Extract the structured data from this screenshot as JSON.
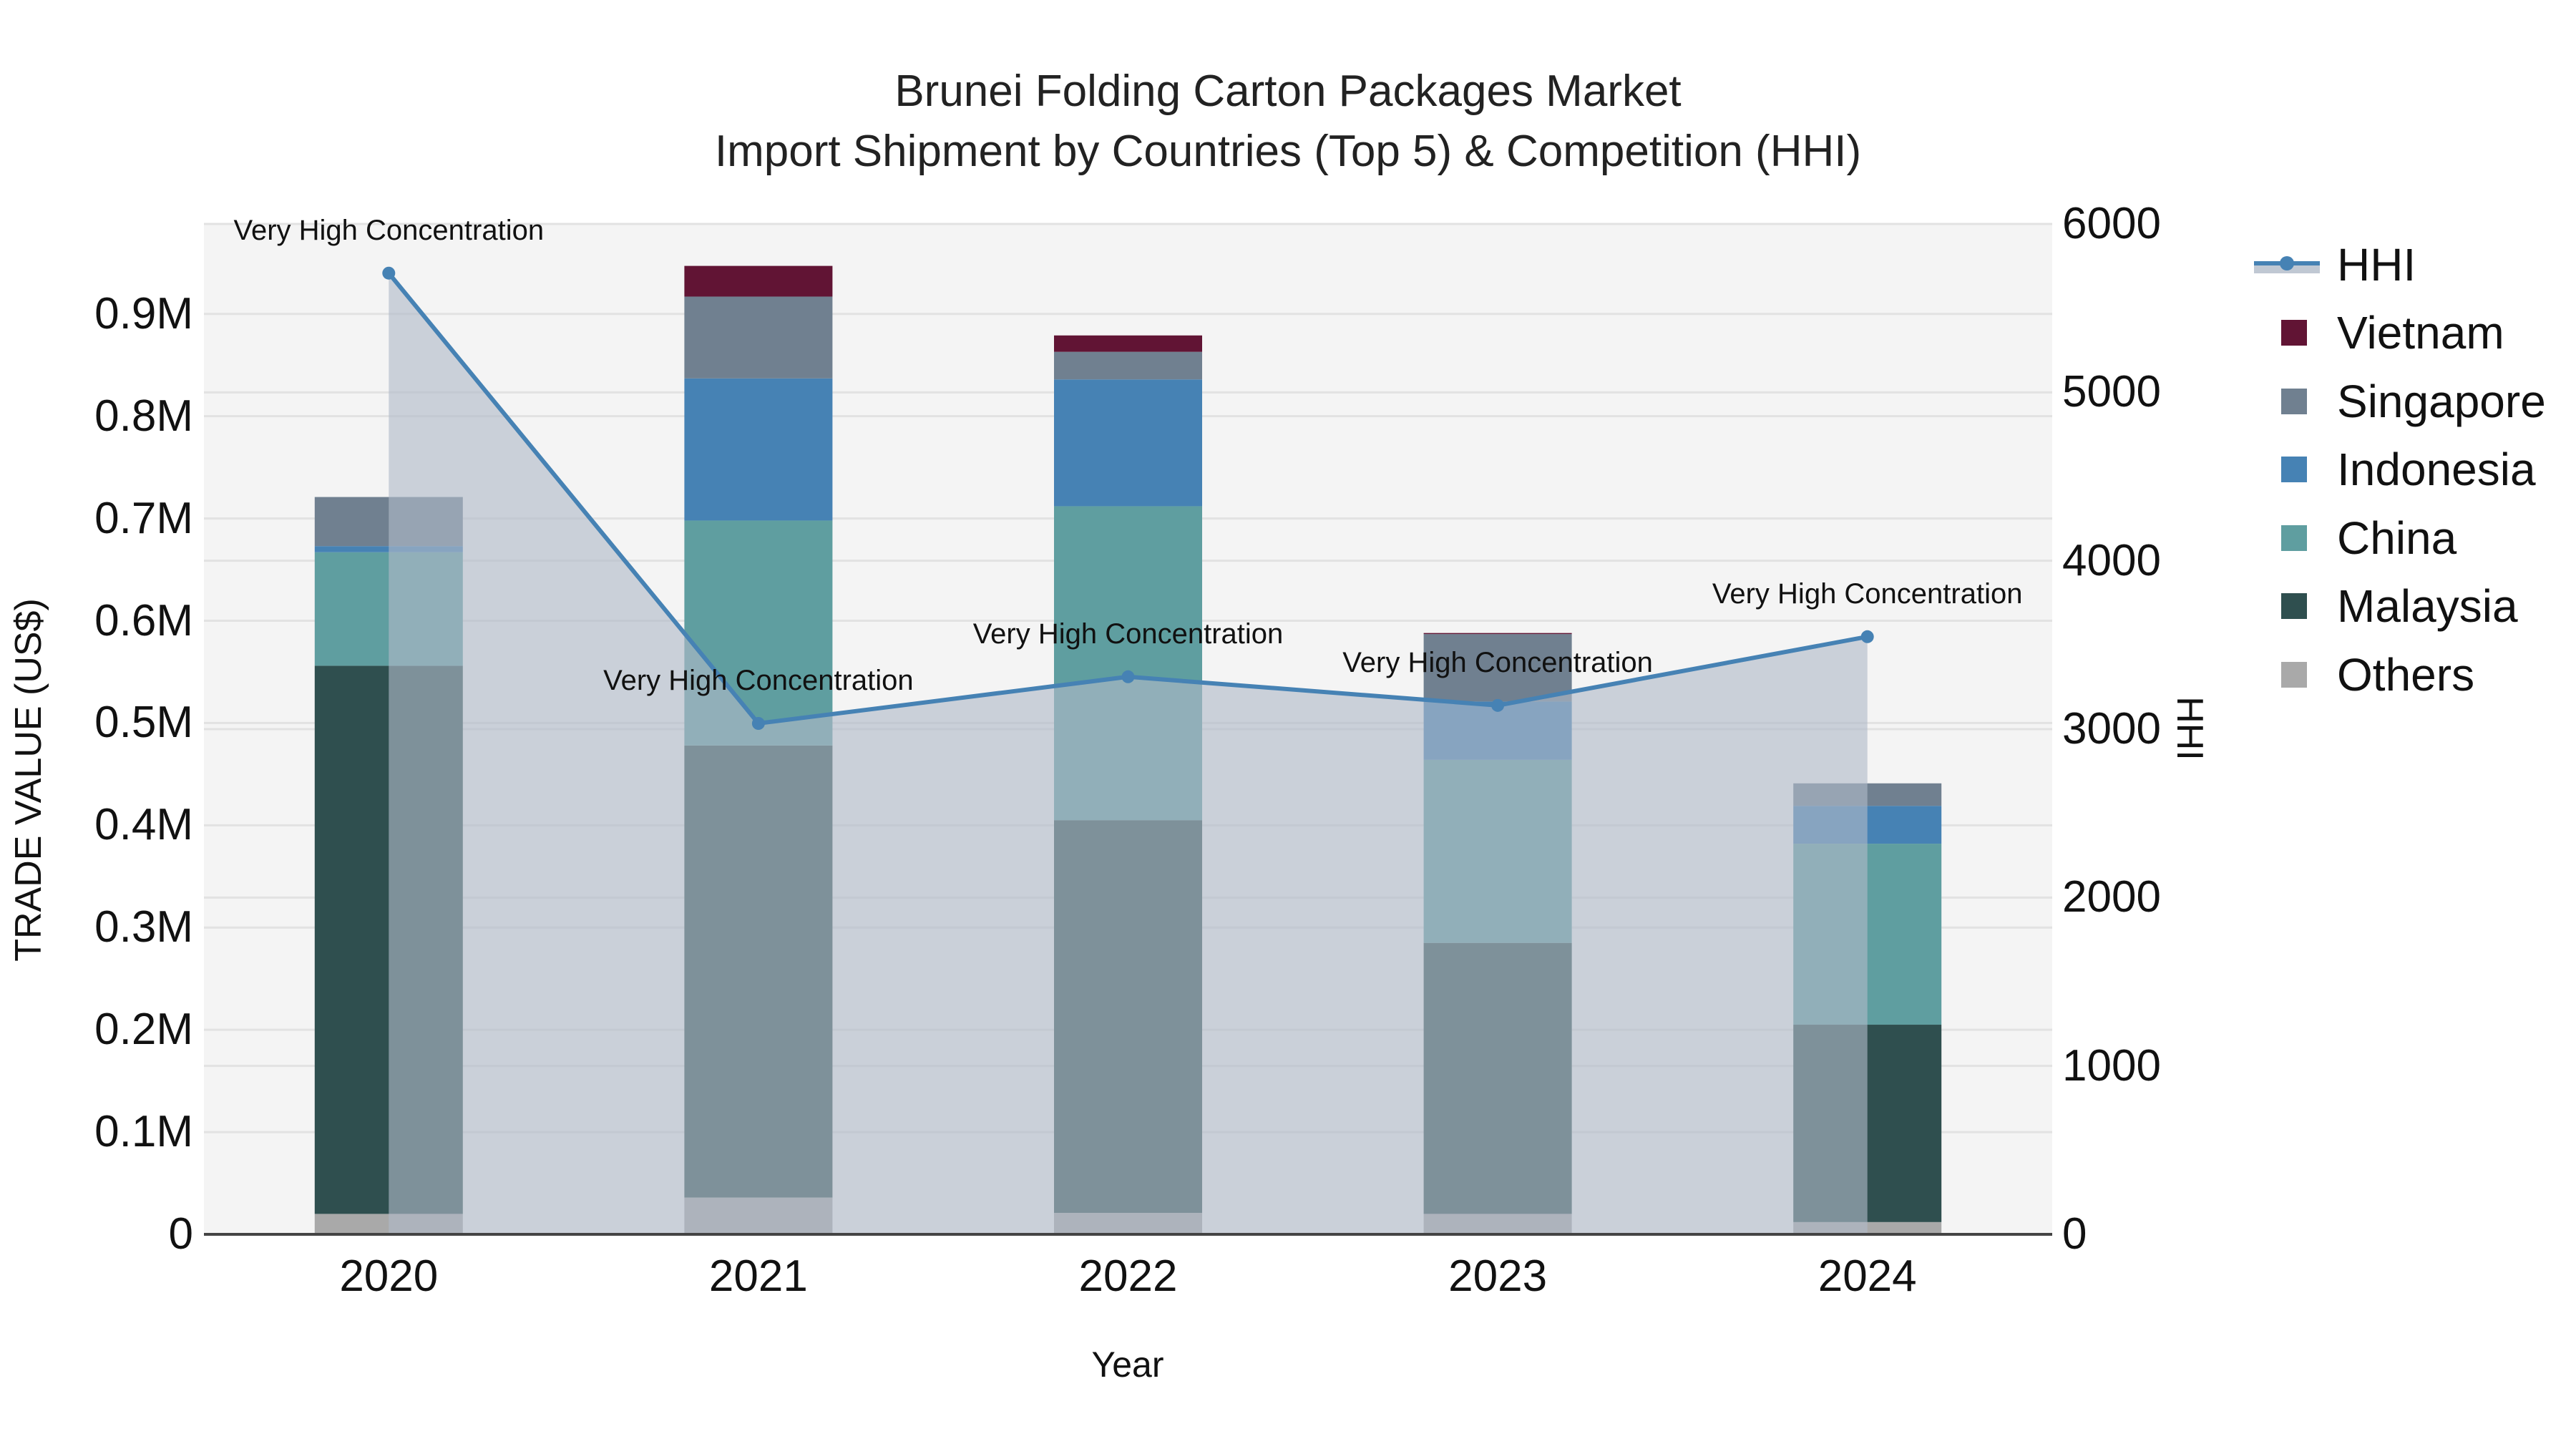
{
  "title": {
    "line1": "Brunei Folding Carton Packages Market",
    "line2": "Import Shipment by Countries (Top 5) & Competition (HHI)"
  },
  "axes": {
    "x_title": "Year",
    "y_title": "TRADE VALUE (US$)",
    "y2_title": "HHI",
    "y_ticks": [
      "0",
      "0.1M",
      "0.2M",
      "0.3M",
      "0.4M",
      "0.5M",
      "0.6M",
      "0.7M",
      "0.8M",
      "0.9M"
    ],
    "y2_ticks": [
      "0",
      "1000",
      "2000",
      "3000",
      "4000",
      "5000",
      "6000"
    ],
    "x_ticks": [
      "2020",
      "2021",
      "2022",
      "2023",
      "2024"
    ]
  },
  "legend": [
    {
      "label": "HHI",
      "type": "line",
      "color": "#4682B4"
    },
    {
      "label": "Vietnam",
      "type": "bar",
      "color": "#611434"
    },
    {
      "label": "Singapore",
      "type": "bar",
      "color": "#708090"
    },
    {
      "label": "Indonesia",
      "type": "bar",
      "color": "#4682B4"
    },
    {
      "label": "China",
      "type": "bar",
      "color": "#5F9EA0"
    },
    {
      "label": "Malaysia",
      "type": "bar",
      "color": "#2F4F4F"
    },
    {
      "label": "Others",
      "type": "bar",
      "color": "#A9A9A9"
    }
  ],
  "annotations": [
    "Very High Concentration",
    "Very High Concentration",
    "Very High Concentration",
    "Very High Concentration",
    "Very High Concentration"
  ],
  "chart_data": {
    "type": "bar",
    "stacked": true,
    "title": "Brunei Folding Carton Packages Market — Import Shipment by Countries (Top 5) & Competition (HHI)",
    "xlabel": "Year",
    "ylabel": "TRADE VALUE (US$)",
    "y2label": "HHI",
    "categories": [
      "2020",
      "2021",
      "2022",
      "2023",
      "2024"
    ],
    "ylim": [
      0,
      988000
    ],
    "y2lim": [
      0,
      6000
    ],
    "grid": true,
    "legend_position": "right",
    "series": [
      {
        "name": "Others",
        "color": "#A9A9A9",
        "values": [
          20000,
          36000,
          21000,
          20000,
          12000
        ]
      },
      {
        "name": "Malaysia",
        "color": "#2F4F4F",
        "values": [
          536000,
          442000,
          384000,
          265000,
          193000
        ]
      },
      {
        "name": "China",
        "color": "#5F9EA0",
        "values": [
          111000,
          220000,
          307000,
          179000,
          177000
        ]
      },
      {
        "name": "Indonesia",
        "color": "#4682B4",
        "values": [
          6000,
          139000,
          124000,
          57000,
          37000
        ]
      },
      {
        "name": "Singapore",
        "color": "#708090",
        "values": [
          48000,
          80000,
          27000,
          66000,
          22000
        ]
      },
      {
        "name": "Vietnam",
        "color": "#611434",
        "values": [
          0,
          30000,
          16000,
          1000,
          0
        ]
      }
    ],
    "line_series": {
      "name": "HHI",
      "axis": "y2",
      "color": "#4682B4",
      "fill": "tozeroy",
      "values": [
        5708,
        3034,
        3311,
        3141,
        3549
      ],
      "labels": [
        "Very High Concentration",
        "Very High Concentration",
        "Very High Concentration",
        "Very High Concentration",
        "Very High Concentration"
      ]
    }
  }
}
